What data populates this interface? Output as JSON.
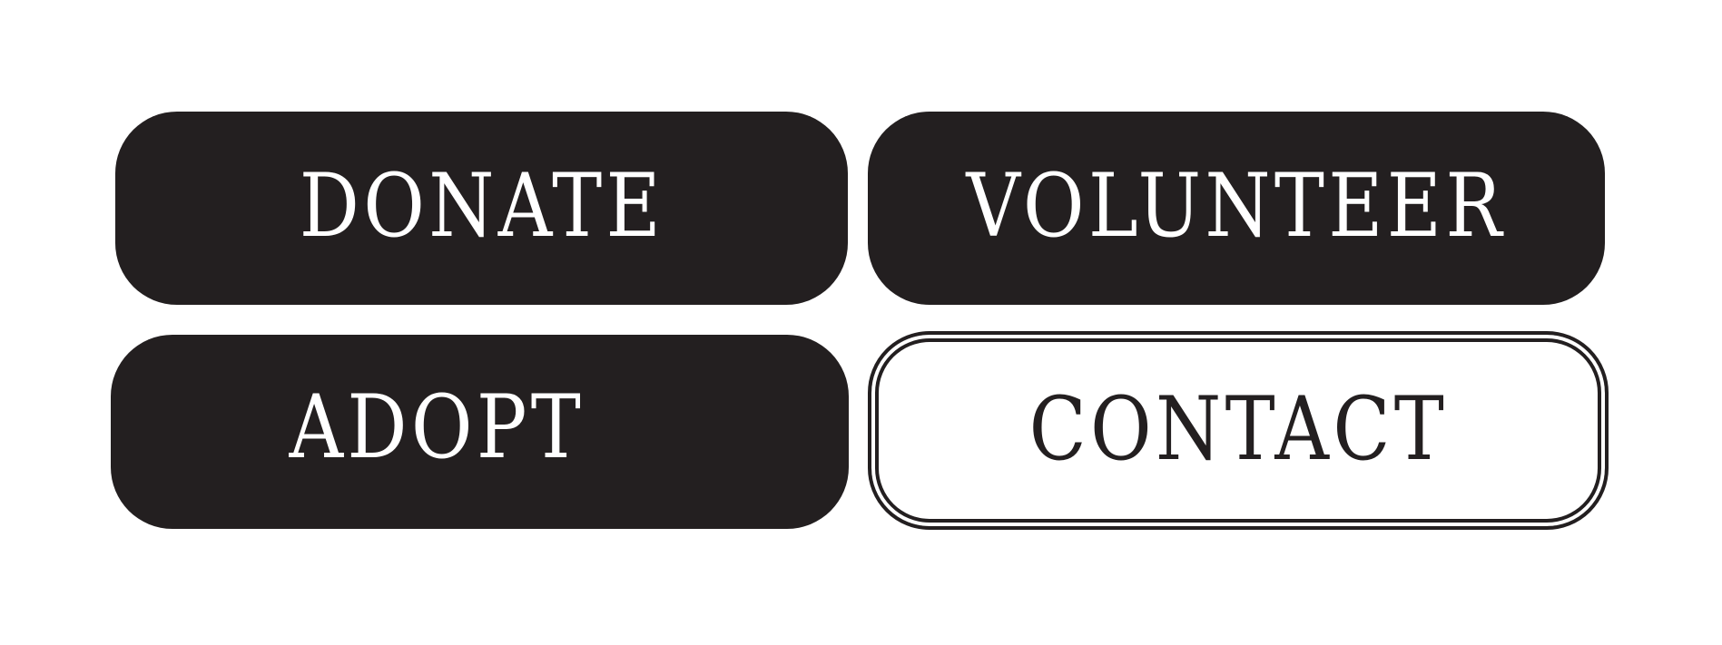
{
  "buttons": {
    "donate": {
      "label": "DONATE"
    },
    "volunteer": {
      "label": "VOLUNTEER"
    },
    "adopt": {
      "label": "ADOPT"
    },
    "contact": {
      "label": "CONTACT"
    }
  },
  "colors": {
    "dark": "#231f20",
    "light": "#ffffff"
  }
}
